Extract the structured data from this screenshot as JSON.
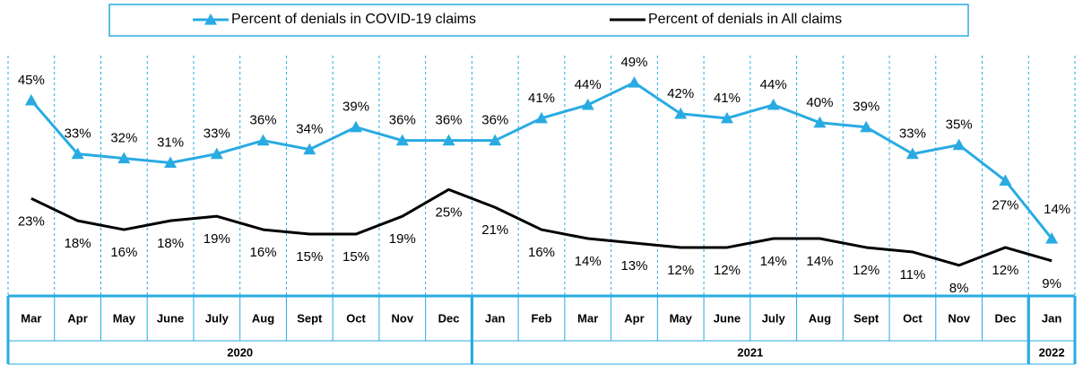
{
  "chart_data": {
    "type": "line",
    "categories": [
      "Mar",
      "Apr",
      "May",
      "June",
      "July",
      "Aug",
      "Sept",
      "Oct",
      "Nov",
      "Dec",
      "Jan",
      "Feb",
      "Mar",
      "Apr",
      "May",
      "June",
      "July",
      "Aug",
      "Sept",
      "Oct",
      "Nov",
      "Dec",
      "Jan"
    ],
    "category_groups": [
      {
        "label": "2020",
        "span": 10
      },
      {
        "label": "2021",
        "span": 12
      },
      {
        "label": "2022",
        "span": 1
      }
    ],
    "series": [
      {
        "name": "Percent of denials in COVID-19 claims",
        "color": "#29abe2",
        "marker": "triangle",
        "values": [
          45,
          33,
          32,
          31,
          33,
          36,
          34,
          39,
          36,
          36,
          36,
          41,
          44,
          49,
          42,
          41,
          44,
          40,
          39,
          33,
          35,
          27,
          14
        ],
        "value_labels": [
          "45%",
          "33%",
          "32%",
          "31%",
          "33%",
          "36%",
          "34%",
          "39%",
          "36%",
          "36%",
          "36%",
          "41%",
          "44%",
          "49%",
          "42%",
          "41%",
          "44%",
          "40%",
          "39%",
          "33%",
          "35%",
          "27%",
          "14%"
        ]
      },
      {
        "name": "Percent of denials in All claims",
        "color": "#000000",
        "values": [
          23,
          18,
          16,
          18,
          19,
          16,
          15,
          15,
          19,
          25,
          21,
          16,
          14,
          13,
          12,
          12,
          14,
          14,
          12,
          11,
          8,
          12,
          9
        ],
        "value_labels": [
          "23%",
          "18%",
          "16%",
          "18%",
          "19%",
          "16%",
          "15%",
          "15%",
          "19%",
          "25%",
          "21%",
          "16%",
          "14%",
          "13%",
          "12%",
          "12%",
          "14%",
          "14%",
          "12%",
          "11%",
          "8%",
          "12%",
          "9%"
        ]
      }
    ],
    "ylim": [
      0,
      55
    ]
  }
}
